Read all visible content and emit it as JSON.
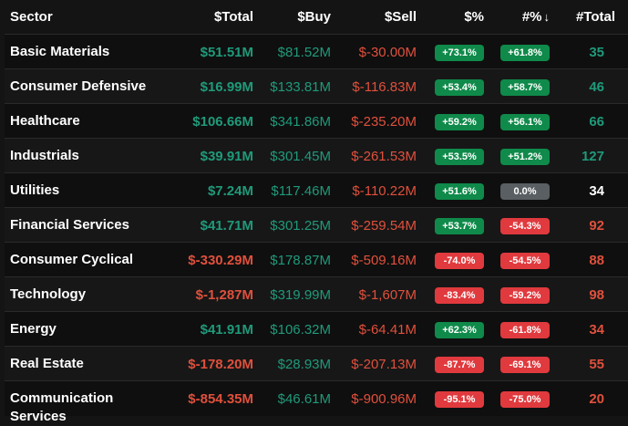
{
  "headers": {
    "sector": "Sector",
    "total": "$Total",
    "buy": "$Buy",
    "sell": "$Sell",
    "pct": "$%",
    "pct2": "#%",
    "sort_arrow": "↓",
    "count": "#Total"
  },
  "rows": [
    {
      "sector": "Basic Materials",
      "total": "$51.51M",
      "total_sign": "pos",
      "buy": "$81.52M",
      "sell": "$-30.00M",
      "pct": "+73.1%",
      "pct_sign": "pos",
      "pct2": "+61.8%",
      "pct2_sign": "pos",
      "count": "35",
      "count_sign": "pos"
    },
    {
      "sector": "Consumer Defensive",
      "total": "$16.99M",
      "total_sign": "pos",
      "buy": "$133.81M",
      "sell": "$-116.83M",
      "pct": "+53.4%",
      "pct_sign": "pos",
      "pct2": "+58.7%",
      "pct2_sign": "pos",
      "count": "46",
      "count_sign": "pos"
    },
    {
      "sector": "Healthcare",
      "total": "$106.66M",
      "total_sign": "pos",
      "buy": "$341.86M",
      "sell": "$-235.20M",
      "pct": "+59.2%",
      "pct_sign": "pos",
      "pct2": "+56.1%",
      "pct2_sign": "pos",
      "count": "66",
      "count_sign": "pos"
    },
    {
      "sector": "Industrials",
      "total": "$39.91M",
      "total_sign": "pos",
      "buy": "$301.45M",
      "sell": "$-261.53M",
      "pct": "+53.5%",
      "pct_sign": "pos",
      "pct2": "+51.2%",
      "pct2_sign": "pos",
      "count": "127",
      "count_sign": "pos"
    },
    {
      "sector": "Utilities",
      "total": "$7.24M",
      "total_sign": "pos",
      "buy": "$117.46M",
      "sell": "$-110.22M",
      "pct": "+51.6%",
      "pct_sign": "pos",
      "pct2": "0.0%",
      "pct2_sign": "neu",
      "count": "34",
      "count_sign": "neu"
    },
    {
      "sector": "Financial Services",
      "total": "$41.71M",
      "total_sign": "pos",
      "buy": "$301.25M",
      "sell": "$-259.54M",
      "pct": "+53.7%",
      "pct_sign": "pos",
      "pct2": "-54.3%",
      "pct2_sign": "neg",
      "count": "92",
      "count_sign": "neg"
    },
    {
      "sector": "Consumer Cyclical",
      "total": "$-330.29M",
      "total_sign": "neg",
      "buy": "$178.87M",
      "sell": "$-509.16M",
      "pct": "-74.0%",
      "pct_sign": "neg",
      "pct2": "-54.5%",
      "pct2_sign": "neg",
      "count": "88",
      "count_sign": "neg"
    },
    {
      "sector": "Technology",
      "total": "$-1,287M",
      "total_sign": "neg",
      "buy": "$319.99M",
      "sell": "$-1,607M",
      "pct": "-83.4%",
      "pct_sign": "neg",
      "pct2": "-59.2%",
      "pct2_sign": "neg",
      "count": "98",
      "count_sign": "neg"
    },
    {
      "sector": "Energy",
      "total": "$41.91M",
      "total_sign": "pos",
      "buy": "$106.32M",
      "sell": "$-64.41M",
      "pct": "+62.3%",
      "pct_sign": "pos",
      "pct2": "-61.8%",
      "pct2_sign": "neg",
      "count": "34",
      "count_sign": "neg"
    },
    {
      "sector": "Real Estate",
      "total": "$-178.20M",
      "total_sign": "neg",
      "buy": "$28.93M",
      "sell": "$-207.13M",
      "pct": "-87.7%",
      "pct_sign": "neg",
      "pct2": "-69.1%",
      "pct2_sign": "neg",
      "count": "55",
      "count_sign": "neg"
    },
    {
      "sector": "Communication Services",
      "total": "$-854.35M",
      "total_sign": "neg",
      "buy": "$46.61M",
      "sell": "$-900.96M",
      "pct": "-95.1%",
      "pct_sign": "neg",
      "pct2": "-75.0%",
      "pct2_sign": "neg",
      "count": "20",
      "count_sign": "neg"
    }
  ],
  "colors": {
    "positive": "#1f9a7a",
    "negative": "#e0503c",
    "badge_positive": "#0f8a4a",
    "badge_negative": "#e03a3e",
    "badge_neutral": "#5a5f63",
    "background": "#141414"
  }
}
